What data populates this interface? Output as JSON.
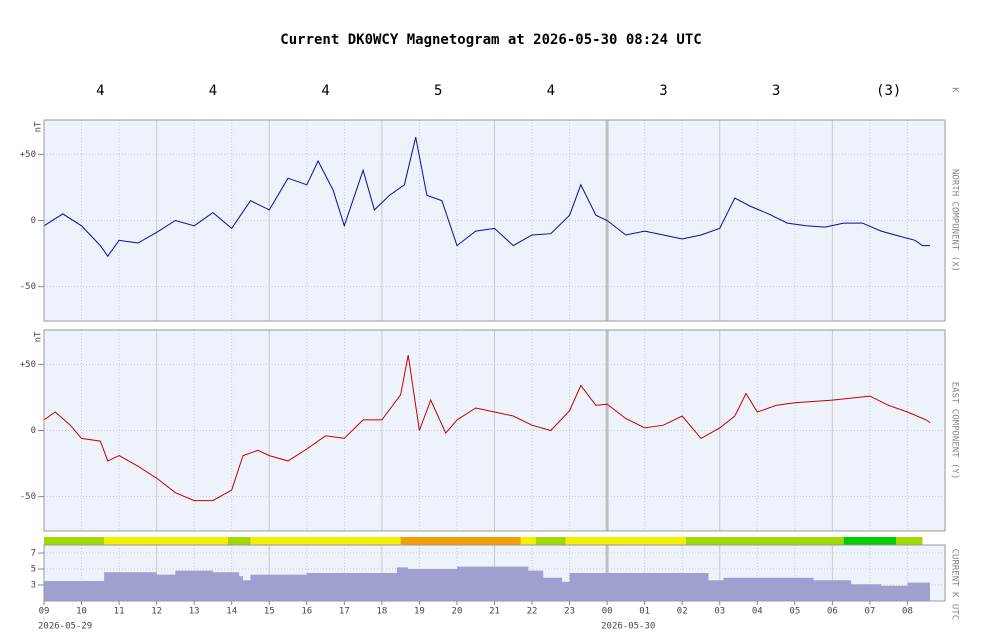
{
  "title": "Current DK0WCY Magnetogram at 2026-05-30 08:24 UTC",
  "k_index": {
    "labels": [
      "4",
      "4",
      "4",
      "5",
      "4",
      "3",
      "3",
      "(3)"
    ],
    "axis_label": "K"
  },
  "chart_data": [
    {
      "type": "line",
      "unit_label": "nT",
      "side_label": "NORTH COMPONENT (X)",
      "xlim": [
        0,
        24
      ],
      "ylim": [
        -76,
        76
      ],
      "yticks": [
        {
          "value": 50,
          "label": "+50"
        },
        0,
        -50
      ],
      "grid": true,
      "series": [
        {
          "color": "#0a0aa0",
          "x": [
            0,
            0.5,
            1,
            1.5,
            1.7,
            2,
            2.5,
            3,
            3.5,
            4,
            4.5,
            5,
            5.5,
            6,
            6.5,
            7,
            7.3,
            7.7,
            8,
            8.5,
            8.8,
            9.2,
            9.6,
            9.9,
            10.2,
            10.6,
            11,
            11.5,
            12,
            12.5,
            13,
            13.5,
            14,
            14.3,
            14.7,
            15,
            15.5,
            16,
            16.5,
            17,
            17.5,
            18,
            18.4,
            18.8,
            19.3,
            19.8,
            20.3,
            20.8,
            21.3,
            21.8,
            22.3,
            22.8,
            23.2,
            23.4,
            23.6
          ],
          "values": [
            -4,
            5,
            -4,
            -19,
            -27,
            -15,
            -17,
            -9,
            0,
            -4,
            6,
            -6,
            15,
            8,
            32,
            27,
            45,
            23,
            -4,
            38,
            8,
            19,
            27,
            63,
            19,
            15,
            -19,
            -8,
            -6,
            -19,
            -11,
            -10,
            4,
            27,
            4,
            0,
            -11,
            -8,
            -11,
            -14,
            -11,
            -6,
            17,
            11,
            5,
            -2,
            -4,
            -5,
            -2,
            -2,
            -8,
            -12,
            -15,
            -19,
            -19
          ]
        }
      ]
    },
    {
      "type": "line",
      "unit_label": "nT",
      "side_label": "EAST COMPONENT (Y)",
      "xlim": [
        0,
        24
      ],
      "ylim": [
        -76,
        76
      ],
      "yticks": [
        {
          "value": 50,
          "label": "+50"
        },
        0,
        -50
      ],
      "grid": true,
      "series": [
        {
          "color": "#c00000",
          "x": [
            0,
            0.3,
            0.7,
            1,
            1.5,
            1.7,
            2,
            2.5,
            3,
            3.5,
            4,
            4.5,
            5,
            5.3,
            5.7,
            6,
            6.5,
            7,
            7.5,
            8,
            8.5,
            9,
            9.5,
            9.7,
            10,
            10.3,
            10.7,
            11,
            11.5,
            12,
            12.5,
            13,
            13.5,
            14,
            14.3,
            14.7,
            15,
            15.5,
            16,
            16.5,
            17,
            17.5,
            18,
            18.4,
            18.7,
            19,
            19.5,
            20,
            21,
            22,
            22.5,
            23,
            23.5,
            23.6
          ],
          "values": [
            8,
            14,
            4,
            -6,
            -8,
            -23,
            -19,
            -27,
            -36,
            -47,
            -53,
            -53,
            -45,
            -19,
            -15,
            -19,
            -23,
            -14,
            -4,
            -6,
            8,
            8,
            27,
            57,
            0,
            23,
            -2,
            8,
            17,
            14,
            11,
            4,
            0,
            15,
            34,
            19,
            20,
            9,
            2,
            4,
            11,
            -6,
            2,
            11,
            28,
            14,
            19,
            21,
            23,
            26,
            19,
            14,
            8,
            6
          ]
        }
      ]
    },
    {
      "type": "area",
      "side_label": "CURRENT K",
      "x_label": "UTC",
      "step": true,
      "xlim": [
        0,
        24
      ],
      "ylim": [
        1,
        8
      ],
      "yticks": [
        7,
        5,
        3
      ],
      "grid": true,
      "xticks": [
        {
          "value": 0,
          "label": "09"
        },
        {
          "value": 1,
          "label": "10"
        },
        {
          "value": 2,
          "label": "11"
        },
        {
          "value": 3,
          "label": "12"
        },
        {
          "value": 4,
          "label": "13"
        },
        {
          "value": 5,
          "label": "14"
        },
        {
          "value": 6,
          "label": "15"
        },
        {
          "value": 7,
          "label": "16"
        },
        {
          "value": 8,
          "label": "17"
        },
        {
          "value": 9,
          "label": "18"
        },
        {
          "value": 10,
          "label": "19"
        },
        {
          "value": 11,
          "label": "20"
        },
        {
          "value": 12,
          "label": "21"
        },
        {
          "value": 13,
          "label": "22"
        },
        {
          "value": 14,
          "label": "23"
        },
        {
          "value": 15,
          "label": "00"
        },
        {
          "value": 16,
          "label": "01"
        },
        {
          "value": 17,
          "label": "02"
        },
        {
          "value": 18,
          "label": "03"
        },
        {
          "value": 19,
          "label": "04"
        },
        {
          "value": 20,
          "label": "05"
        },
        {
          "value": 21,
          "label": "06"
        },
        {
          "value": 22,
          "label": "07"
        },
        {
          "value": 23,
          "label": "08"
        }
      ],
      "date_labels": [
        {
          "value": 0,
          "label": "2026-05-29"
        },
        {
          "value": 15,
          "label": "2026-05-30"
        }
      ],
      "series": [
        {
          "color": "#a0a0d0",
          "x": [
            0,
            1.6,
            3,
            3.5,
            4.5,
            5.2,
            5.3,
            5.5,
            7,
            9.4,
            9.7,
            11,
            12.9,
            13.3,
            13.8,
            14,
            17.7,
            18.1,
            20.5,
            21.5,
            22.3,
            23,
            23.6
          ],
          "values": [
            3.5,
            4.6,
            4.3,
            4.8,
            4.6,
            4.1,
            3.6,
            4.3,
            4.5,
            5.2,
            5.0,
            5.3,
            4.8,
            3.9,
            3.4,
            4.5,
            3.6,
            3.9,
            3.6,
            3.1,
            2.9,
            3.3,
            3.3
          ]
        }
      ],
      "bands": [
        {
          "from": 0,
          "to": 1.6,
          "color": "#a0d800"
        },
        {
          "from": 1.6,
          "to": 4.9,
          "color": "#f0f000"
        },
        {
          "from": 4.9,
          "to": 5.5,
          "color": "#a0d800"
        },
        {
          "from": 5.5,
          "to": 9.5,
          "color": "#f0f000"
        },
        {
          "from": 9.5,
          "to": 12.7,
          "color": "#f0a000"
        },
        {
          "from": 12.7,
          "to": 13.1,
          "color": "#f0f000"
        },
        {
          "from": 13.1,
          "to": 13.9,
          "color": "#a0d800"
        },
        {
          "from": 13.9,
          "to": 17.1,
          "color": "#f0f000"
        },
        {
          "from": 17.1,
          "to": 21.3,
          "color": "#a0d800"
        },
        {
          "from": 21.3,
          "to": 22.7,
          "color": "#00cc00"
        },
        {
          "from": 22.7,
          "to": 23.4,
          "color": "#a0d800"
        }
      ]
    }
  ]
}
